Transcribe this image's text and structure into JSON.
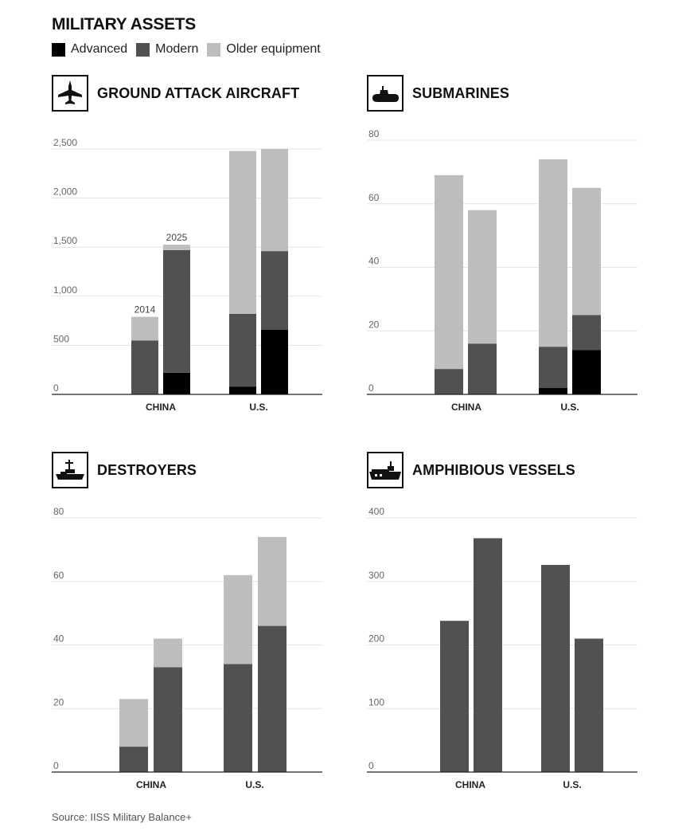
{
  "title": "MILITARY ASSETS",
  "legend": [
    {
      "label": "Advanced",
      "color": "#000000"
    },
    {
      "label": "Modern",
      "color": "#515151"
    },
    {
      "label": "Older equipment",
      "color": "#bdbdbd"
    }
  ],
  "source": "Source: IISS Military Balance+",
  "chart_data": [
    {
      "type": "bar",
      "stacked": true,
      "title": "GROUND ATTACK AIRCRAFT",
      "icon": "fighter-jet-icon",
      "categories": [
        "CHINA",
        "U.S."
      ],
      "bar_labels": [
        "2014",
        "2025"
      ],
      "ylim": [
        0,
        2500
      ],
      "yticks": [
        "0",
        "500",
        "1,000",
        "1,500",
        "2,000",
        "2,500"
      ],
      "grid": true,
      "bars": [
        {
          "category": "CHINA",
          "label": "2014",
          "advanced": 0,
          "modern": 550,
          "older": 240
        },
        {
          "category": "CHINA",
          "label": "2025",
          "advanced": 220,
          "modern": 1250,
          "older": 55
        },
        {
          "category": "U.S.",
          "label": "",
          "advanced": 80,
          "modern": 740,
          "older": 1660
        },
        {
          "category": "U.S.",
          "label": "",
          "advanced": 660,
          "modern": 800,
          "older": 1040
        }
      ]
    },
    {
      "type": "bar",
      "stacked": true,
      "title": "SUBMARINES",
      "icon": "submarine-icon",
      "categories": [
        "CHINA",
        "U.S."
      ],
      "ylim": [
        0,
        80
      ],
      "yticks": [
        "0",
        "20",
        "40",
        "60",
        "80"
      ],
      "grid": true,
      "bars": [
        {
          "category": "CHINA",
          "advanced": 0,
          "modern": 8,
          "older": 61
        },
        {
          "category": "CHINA",
          "advanced": 0,
          "modern": 16,
          "older": 42
        },
        {
          "category": "U.S.",
          "advanced": 2,
          "modern": 13,
          "older": 59
        },
        {
          "category": "U.S.",
          "advanced": 14,
          "modern": 11,
          "older": 40
        }
      ]
    },
    {
      "type": "bar",
      "stacked": true,
      "title": "DESTROYERS",
      "icon": "destroyer-ship-icon",
      "categories": [
        "CHINA",
        "U.S."
      ],
      "ylim": [
        0,
        80
      ],
      "yticks": [
        "0",
        "20",
        "40",
        "60",
        "80"
      ],
      "grid": true,
      "bars": [
        {
          "category": "CHINA",
          "advanced": 0,
          "modern": 8,
          "older": 15
        },
        {
          "category": "CHINA",
          "advanced": 0,
          "modern": 33,
          "older": 9
        },
        {
          "category": "U.S.",
          "advanced": 0,
          "modern": 34,
          "older": 28
        },
        {
          "category": "U.S.",
          "advanced": 0,
          "modern": 46,
          "older": 28
        }
      ]
    },
    {
      "type": "bar",
      "stacked": true,
      "title": "AMPHIBIOUS VESSELS",
      "icon": "amphibious-ship-icon",
      "categories": [
        "CHINA",
        "U.S."
      ],
      "ylim": [
        0,
        400
      ],
      "yticks": [
        "0",
        "100",
        "200",
        "300",
        "400"
      ],
      "grid": true,
      "bars": [
        {
          "category": "CHINA",
          "advanced": 0,
          "modern": 238,
          "older": 0
        },
        {
          "category": "CHINA",
          "advanced": 0,
          "modern": 368,
          "older": 0
        },
        {
          "category": "U.S.",
          "advanced": 0,
          "modern": 326,
          "older": 0
        },
        {
          "category": "U.S.",
          "advanced": 0,
          "modern": 210,
          "older": 0
        }
      ]
    }
  ]
}
